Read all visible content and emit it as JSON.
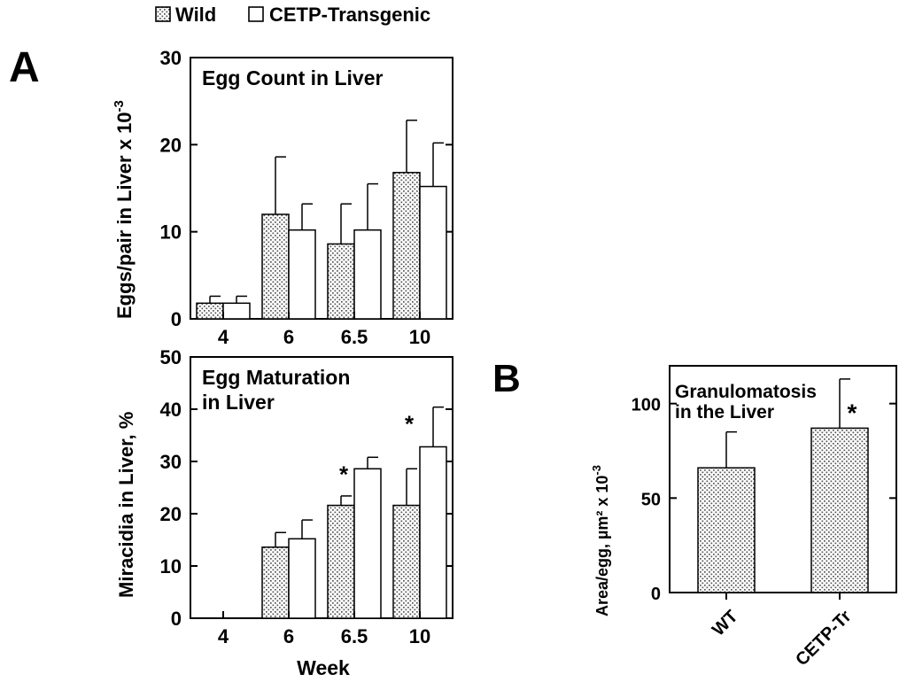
{
  "legend": {
    "items": [
      {
        "label": "Wild",
        "pattern": "dotted"
      },
      {
        "label": "CETP-Transgenic",
        "pattern": "open"
      }
    ]
  },
  "panel_labels": {
    "a": "A",
    "b": "B"
  },
  "chart_data": [
    {
      "id": "eggcount",
      "type": "bar",
      "title": "Egg Count in Liver",
      "ylabel": "Eggs/pair in Liver x 10",
      "ylabel_exp": "-3",
      "xlabel": "",
      "ylim": [
        0,
        30
      ],
      "yticks": [
        0,
        10,
        20,
        30
      ],
      "categories": [
        "4",
        "6",
        "6.5",
        "10"
      ],
      "series": [
        {
          "name": "Wild",
          "values": [
            1.8,
            12.0,
            8.6,
            16.8
          ],
          "errors": [
            0.8,
            6.6,
            4.6,
            6.0
          ]
        },
        {
          "name": "CETP-Transgenic",
          "values": [
            1.8,
            10.2,
            10.2,
            15.2
          ],
          "errors": [
            0.8,
            3.0,
            5.3,
            5.0
          ]
        }
      ],
      "significance": []
    },
    {
      "id": "maturation",
      "type": "bar",
      "title": "Egg Maturation",
      "title_line2": "in Liver",
      "ylabel": "Miracidia in Liver, %",
      "xlabel": "Week",
      "ylim": [
        0,
        50
      ],
      "yticks": [
        0,
        10,
        20,
        30,
        40,
        50
      ],
      "categories": [
        "4",
        "6",
        "6.5",
        "10"
      ],
      "series": [
        {
          "name": "Wild",
          "values": [
            null,
            13.6,
            21.6,
            21.6
          ],
          "errors": [
            null,
            2.8,
            1.8,
            7.0
          ]
        },
        {
          "name": "CETP-Transgenic",
          "values": [
            null,
            15.2,
            28.6,
            32.8
          ],
          "errors": [
            null,
            3.6,
            2.2,
            7.6
          ]
        }
      ],
      "significance": [
        {
          "category": "6.5",
          "label": "*"
        },
        {
          "category": "10",
          "label": "*"
        }
      ]
    },
    {
      "id": "granulomatosis",
      "type": "bar",
      "title": "Granulomatosis",
      "title_line2": "in the Liver",
      "ylabel": "Area/egg, µm² x 10",
      "ylabel_exp": "-3",
      "xlabel": "",
      "ylim": [
        0,
        120
      ],
      "yticks": [
        0,
        50,
        100
      ],
      "categories": [
        "WT",
        "CETP-Tr"
      ],
      "values": [
        66,
        87
      ],
      "errors": [
        19,
        26
      ],
      "significance": [
        {
          "category": "CETP-Tr",
          "label": "*"
        }
      ]
    }
  ]
}
